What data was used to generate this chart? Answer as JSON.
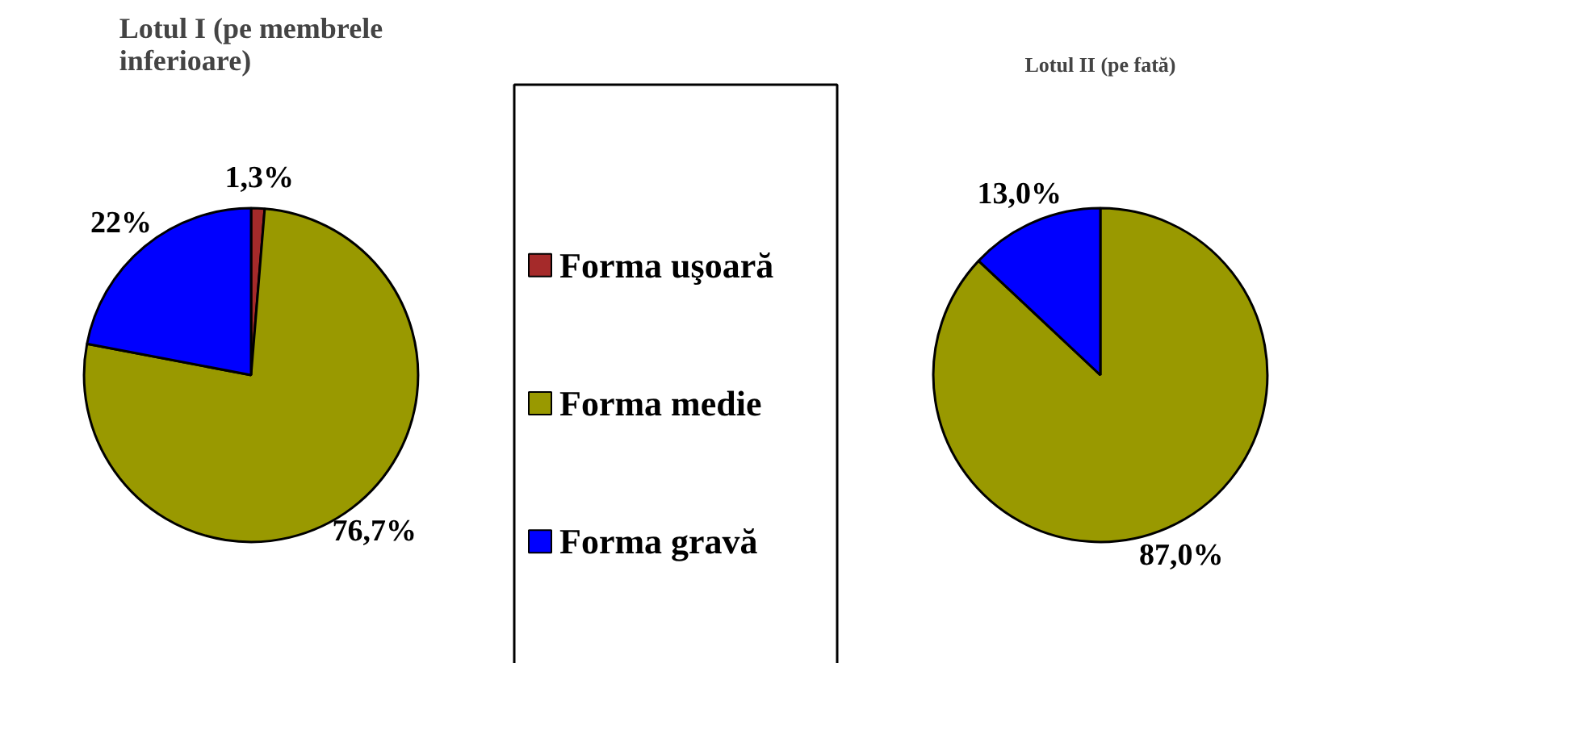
{
  "chart_data": [
    {
      "type": "pie",
      "title": "Lotul I (pe membrele inferioare)",
      "categories": [
        "Forma uşoară",
        "Forma medie",
        "Forma gravă"
      ],
      "values": [
        1.3,
        76.7,
        22
      ],
      "colors": [
        "#a52a2a",
        "#999900",
        "#0000ff"
      ],
      "value_labels": [
        "1,3%",
        "76,7%",
        "22%"
      ],
      "legend": "right"
    },
    {
      "type": "pie",
      "title": "Lotul II (pe fată)",
      "categories": [
        null,
        null
      ],
      "values": [
        87.0,
        13.0
      ],
      "colors": [
        "#999900",
        "#0000ff"
      ],
      "value_labels": [
        "87,0%",
        "13,0%"
      ]
    }
  ]
}
